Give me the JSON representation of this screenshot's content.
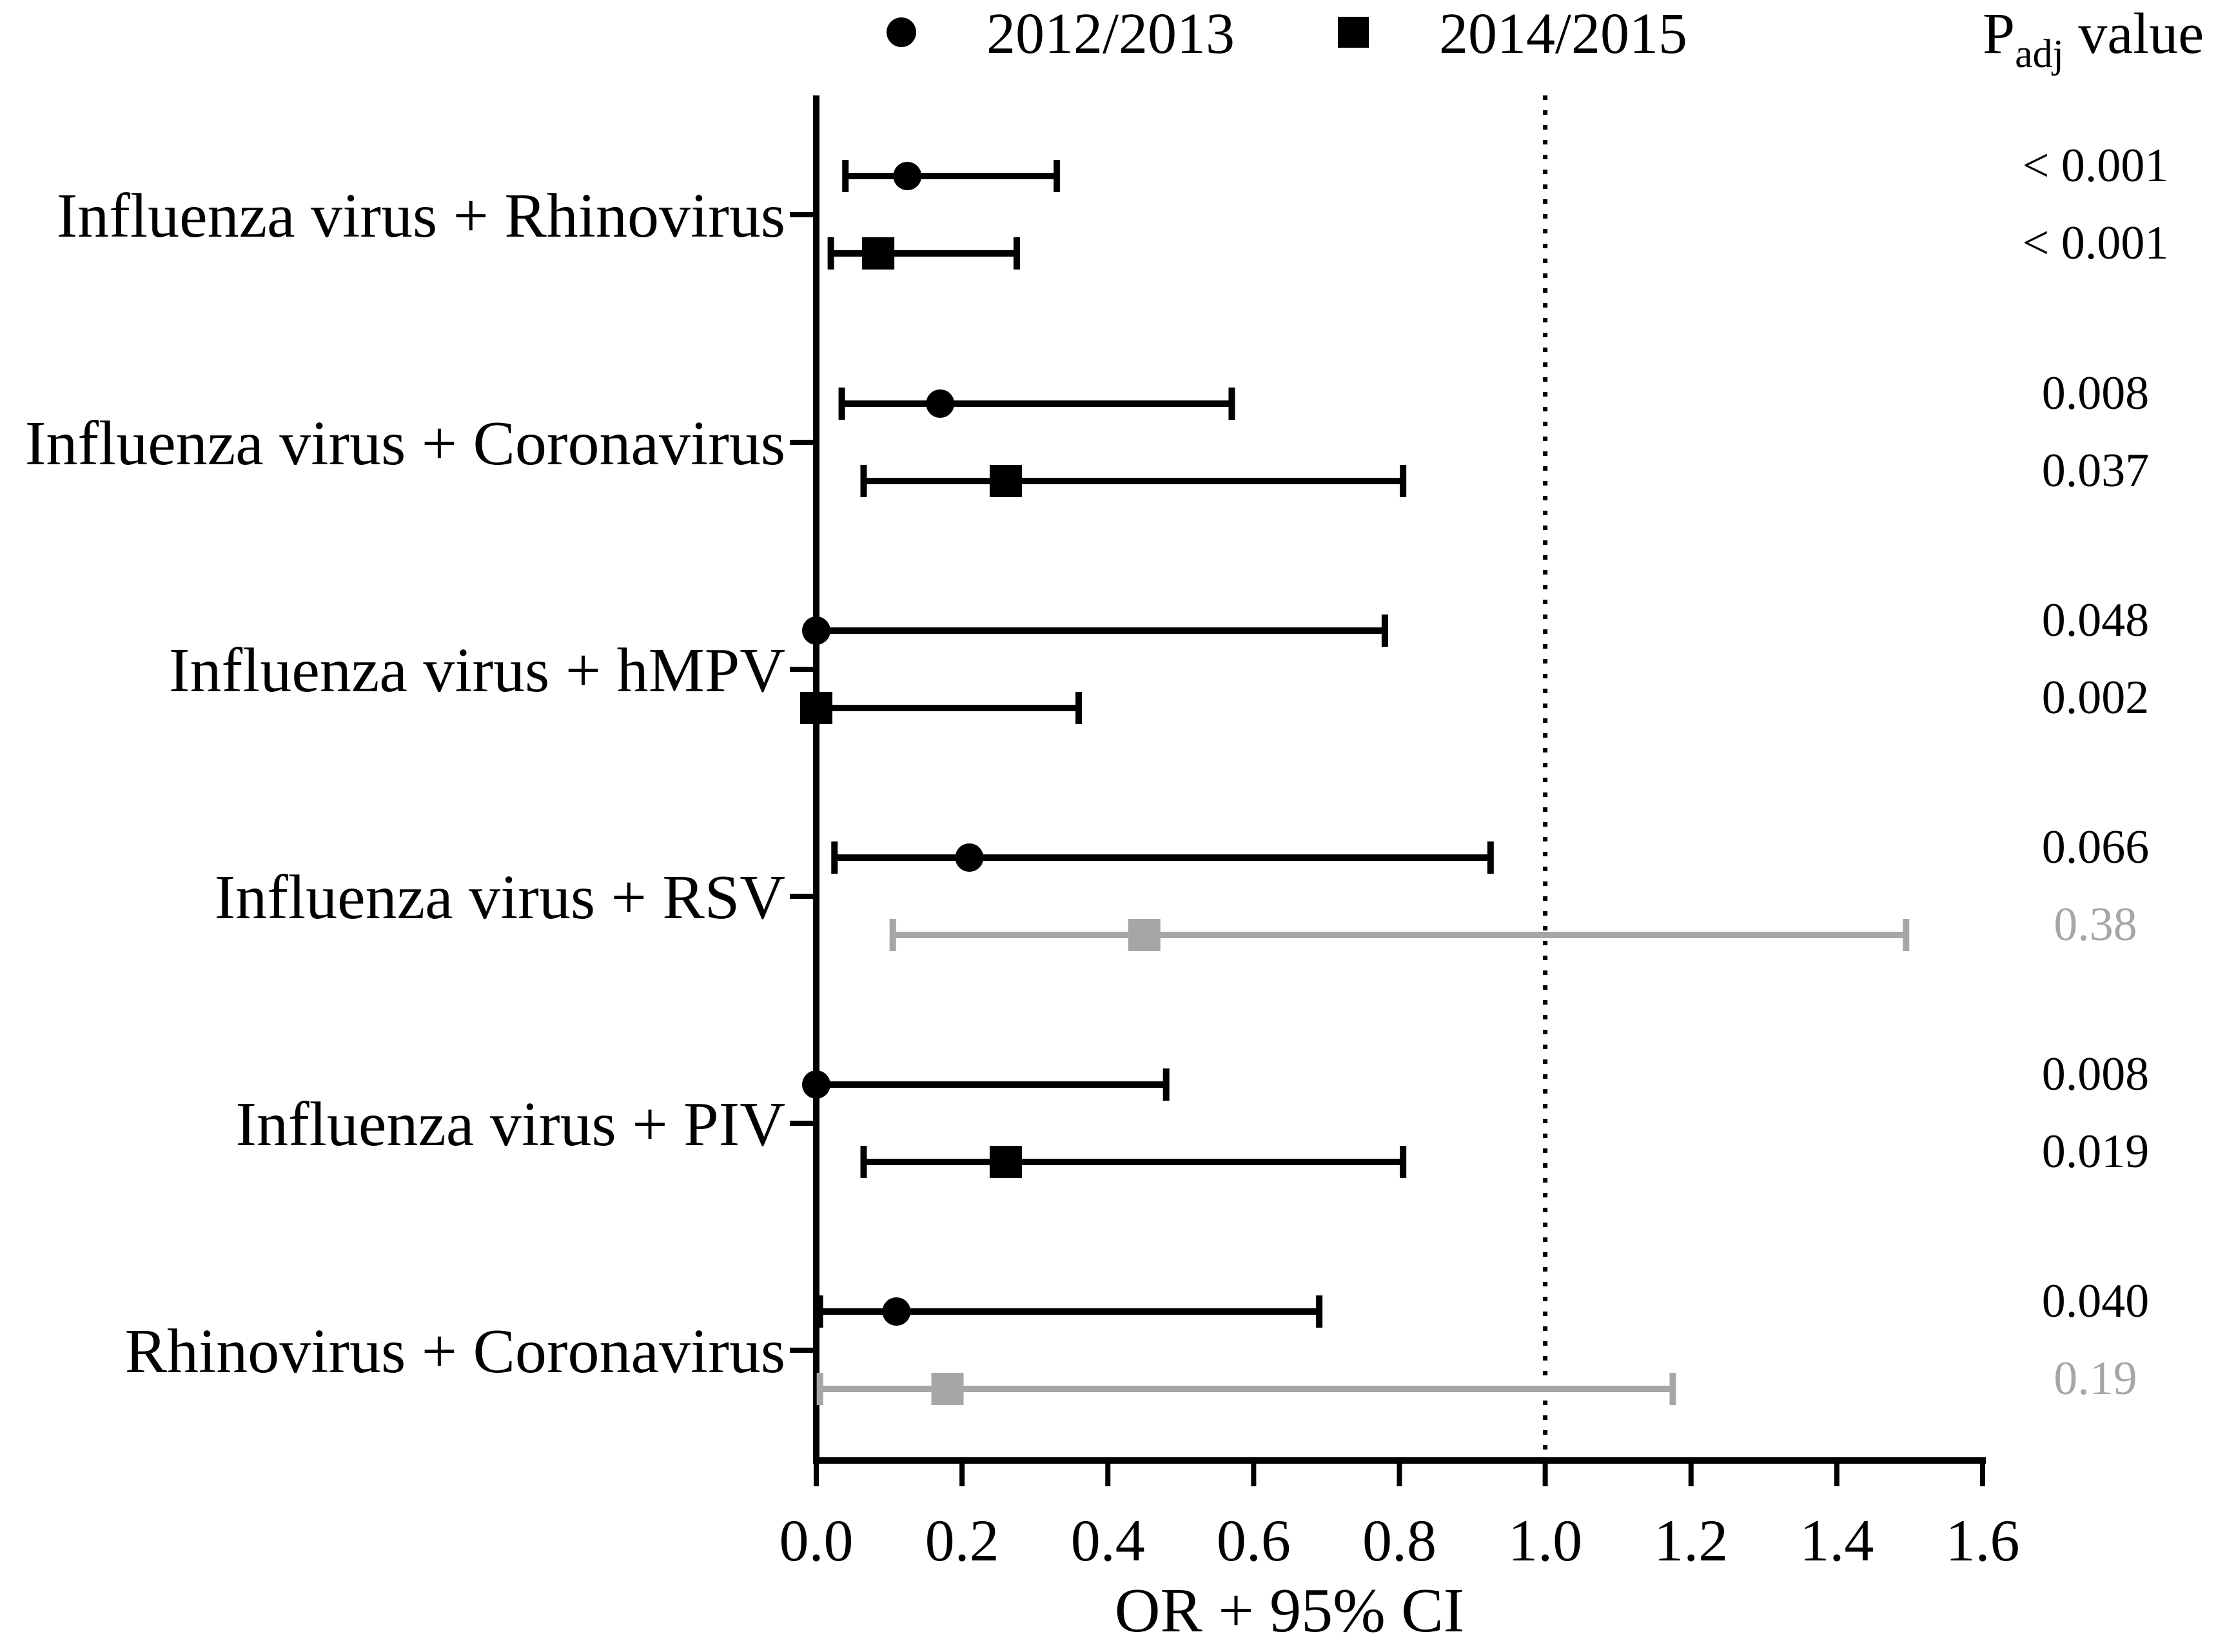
{
  "chart_data": {
    "type": "forest",
    "title": "",
    "xlabel": "OR + 95% CI",
    "ylabel": "",
    "xlim": [
      0,
      1.6
    ],
    "xticks": [
      "0.0",
      "0.2",
      "0.4",
      "0.6",
      "0.8",
      "1.0",
      "1.2",
      "1.4",
      "1.6"
    ],
    "reference_line": 1.0,
    "legend": {
      "placement": "top-center",
      "entries": [
        {
          "name": "2012/2013",
          "marker": "circle"
        },
        {
          "name": "2014/2015",
          "marker": "square"
        }
      ]
    },
    "p_header": {
      "main": "P",
      "sub": "adj",
      "suffix": " value"
    },
    "colors": {
      "significant": "#000000",
      "nonsignificant": "#a6a6a6"
    },
    "groups": [
      {
        "label": "Influenza virus + Rhinovirus",
        "entries": [
          {
            "series": "2012/2013",
            "or": 0.125,
            "ci": [
              0.04,
              0.33
            ],
            "p": "< 0.001",
            "significant": true
          },
          {
            "series": "2014/2015",
            "or": 0.085,
            "ci": [
              0.02,
              0.275
            ],
            "p": "< 0.001",
            "significant": true
          }
        ]
      },
      {
        "label": "Influenza virus + Coronavirus",
        "entries": [
          {
            "series": "2012/2013",
            "or": 0.17,
            "ci": [
              0.035,
              0.57
            ],
            "p": "0.008",
            "significant": true
          },
          {
            "series": "2014/2015",
            "or": 0.26,
            "ci": [
              0.065,
              0.805
            ],
            "p": "0.037",
            "significant": true
          }
        ]
      },
      {
        "label": "Influenza virus + hMPV",
        "entries": [
          {
            "series": "2012/2013",
            "or": 0.0,
            "ci": [
              0.0,
              0.78
            ],
            "p": "0.048",
            "significant": true
          },
          {
            "series": "2014/2015",
            "or": 0.0,
            "ci": [
              0.0,
              0.36
            ],
            "p": "0.002",
            "significant": true
          }
        ]
      },
      {
        "label": "Influenza virus + RSV",
        "entries": [
          {
            "series": "2012/2013",
            "or": 0.21,
            "ci": [
              0.025,
              0.925
            ],
            "p": "0.066",
            "significant": true
          },
          {
            "series": "2014/2015",
            "or": 0.45,
            "ci": [
              0.105,
              1.495
            ],
            "p": "0.38",
            "significant": false
          }
        ]
      },
      {
        "label": "Influenza virus + PIV",
        "entries": [
          {
            "series": "2012/2013",
            "or": 0.0,
            "ci": [
              0.0,
              0.48
            ],
            "p": "0.008",
            "significant": true
          },
          {
            "series": "2014/2015",
            "or": 0.26,
            "ci": [
              0.065,
              0.805
            ],
            "p": "0.019",
            "significant": true
          }
        ]
      },
      {
        "label": "Rhinovirus + Coronavirus",
        "entries": [
          {
            "series": "2012/2013",
            "or": 0.11,
            "ci": [
              0.005,
              0.69
            ],
            "p": "0.040",
            "significant": true
          },
          {
            "series": "2014/2015",
            "or": 0.18,
            "ci": [
              0.005,
              1.175
            ],
            "p": "0.19",
            "significant": false
          }
        ]
      }
    ]
  }
}
